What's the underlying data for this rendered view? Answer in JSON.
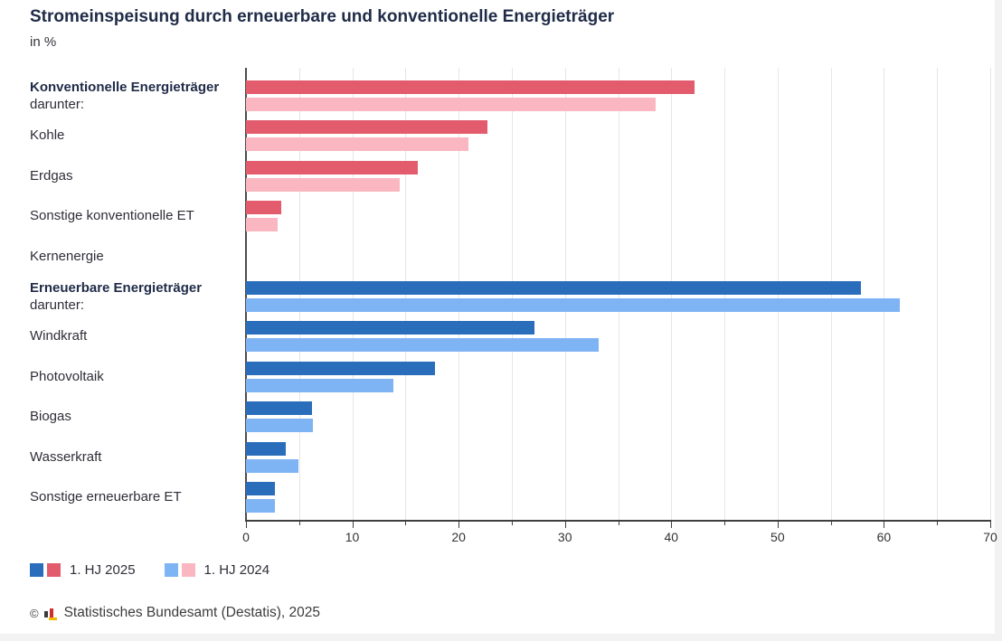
{
  "title": "Stromeinspeisung durch erneuerbare und konventionelle Energieträger",
  "subtitle": "in %",
  "chart_data": {
    "type": "bar",
    "orientation": "horizontal",
    "title": "Stromeinspeisung durch erneuerbare und konventionelle Energieträger",
    "subtitle": "in %",
    "xlim": [
      0,
      70
    ],
    "x_ticks": [
      0,
      10,
      20,
      30,
      40,
      50,
      60,
      70
    ],
    "gridline_step": 5,
    "grid": true,
    "legend_position": "bottom",
    "categories": [
      {
        "label": "Konventionelle Energieträger",
        "sublabel": "darunter:",
        "header": true,
        "group": "konventionell"
      },
      {
        "label": "Kohle",
        "group": "konventionell"
      },
      {
        "label": "Erdgas",
        "group": "konventionell"
      },
      {
        "label": "Sonstige konventionelle ET",
        "group": "konventionell"
      },
      {
        "label": "Kernenergie",
        "group": "konventionell"
      },
      {
        "label": "Erneuerbare Energieträger",
        "sublabel": "darunter:",
        "header": true,
        "group": "erneuerbar"
      },
      {
        "label": "Windkraft",
        "group": "erneuerbar"
      },
      {
        "label": "Photovoltaik",
        "group": "erneuerbar"
      },
      {
        "label": "Biogas",
        "group": "erneuerbar"
      },
      {
        "label": "Wasserkraft",
        "group": "erneuerbar"
      },
      {
        "label": "Sonstige erneuerbare ET",
        "group": "erneuerbar"
      }
    ],
    "series": [
      {
        "name": "1. HJ 2025",
        "values": [
          42.2,
          22.7,
          16.2,
          3.3,
          0,
          57.8,
          27.1,
          17.8,
          6.2,
          3.7,
          2.7
        ],
        "colors": {
          "konventionell": "#e25c6e",
          "erneuerbar": "#2a6ebb"
        }
      },
      {
        "name": "1. HJ 2024",
        "values": [
          38.5,
          20.9,
          14.5,
          3.0,
          0,
          61.5,
          33.2,
          13.9,
          6.3,
          4.9,
          2.7
        ],
        "colors": {
          "konventionell": "#fab7c1",
          "erneuerbar": "#7fb4f4"
        }
      }
    ]
  },
  "legend": [
    {
      "label": "1. HJ 2025",
      "swatches": [
        "#2a6ebb",
        "#e25c6e"
      ]
    },
    {
      "label": "1. HJ 2024",
      "swatches": [
        "#7fb4f4",
        "#fab7c1"
      ]
    }
  ],
  "footer": {
    "copyright": "©",
    "source": "Statistisches Bundesamt (Destatis), 2025"
  },
  "colors": {
    "grid": "#e6e6e6",
    "axis": "#3f3f3f",
    "spine": "#4d4d4d",
    "title_text": "#1f2b47",
    "body_text": "#2e2e38",
    "logo_black": "#3a3a3a",
    "logo_red": "#d22d2d",
    "logo_gold": "#f2b700"
  }
}
